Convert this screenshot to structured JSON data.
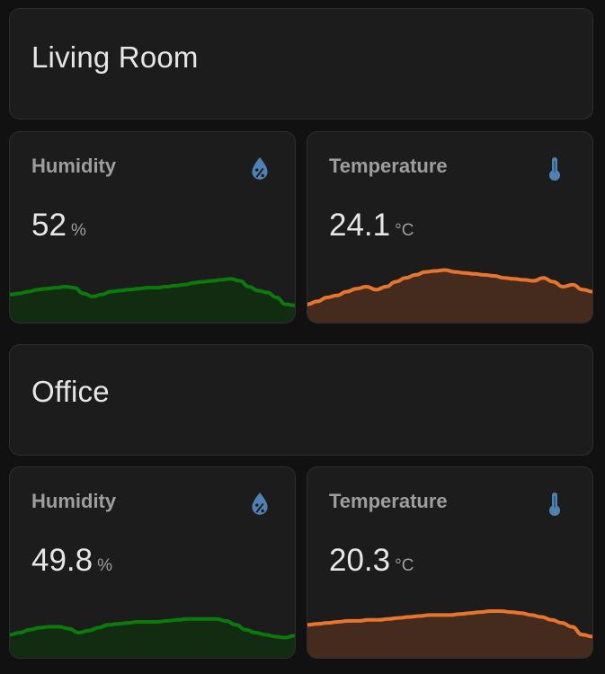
{
  "colors": {
    "humidity_line": "#0b7a0b",
    "humidity_fill": "#0b3a0b",
    "temperature_line": "#e8752e",
    "temperature_fill": "#4a2d1f",
    "icon": "#4e82b4"
  },
  "rooms": [
    {
      "title": "Living Room",
      "humidity": {
        "name": "Humidity",
        "icon": "water-percent-icon",
        "value": "52",
        "unit": "%",
        "history": [
          25,
          26,
          28,
          30,
          31,
          32,
          33,
          32,
          26,
          23,
          25,
          28,
          29,
          30,
          31,
          32,
          32,
          33,
          34,
          35,
          37,
          38,
          39,
          40,
          41,
          39,
          33,
          29,
          27,
          22,
          15,
          14
        ]
      },
      "temperature": {
        "name": "Temperature",
        "icon": "thermometer-icon",
        "value": "24.1",
        "unit": "°C",
        "history": [
          15,
          18,
          22,
          24,
          28,
          31,
          33,
          30,
          33,
          38,
          42,
          45,
          48,
          49,
          50,
          48,
          47,
          46,
          45,
          44,
          42,
          41,
          40,
          39,
          42,
          38,
          33,
          35,
          30,
          28
        ]
      }
    },
    {
      "title": "Office",
      "humidity": {
        "name": "Humidity",
        "icon": "water-percent-icon",
        "value": "49.8",
        "unit": "%",
        "history": [
          20,
          22,
          25,
          27,
          28,
          28,
          26,
          22,
          24,
          27,
          30,
          31,
          32,
          33,
          33,
          33,
          34,
          35,
          36,
          36,
          36,
          36,
          34,
          30,
          25,
          22,
          20,
          18,
          17,
          19
        ]
      },
      "temperature": {
        "name": "Temperature",
        "icon": "thermometer-icon",
        "value": "20.3",
        "unit": "°C",
        "history": [
          30,
          31,
          32,
          33,
          34,
          34,
          35,
          35,
          36,
          37,
          38,
          39,
          40,
          40,
          40,
          41,
          42,
          43,
          44,
          44,
          43,
          42,
          40,
          38,
          35,
          32,
          28,
          20,
          18
        ]
      }
    }
  ]
}
